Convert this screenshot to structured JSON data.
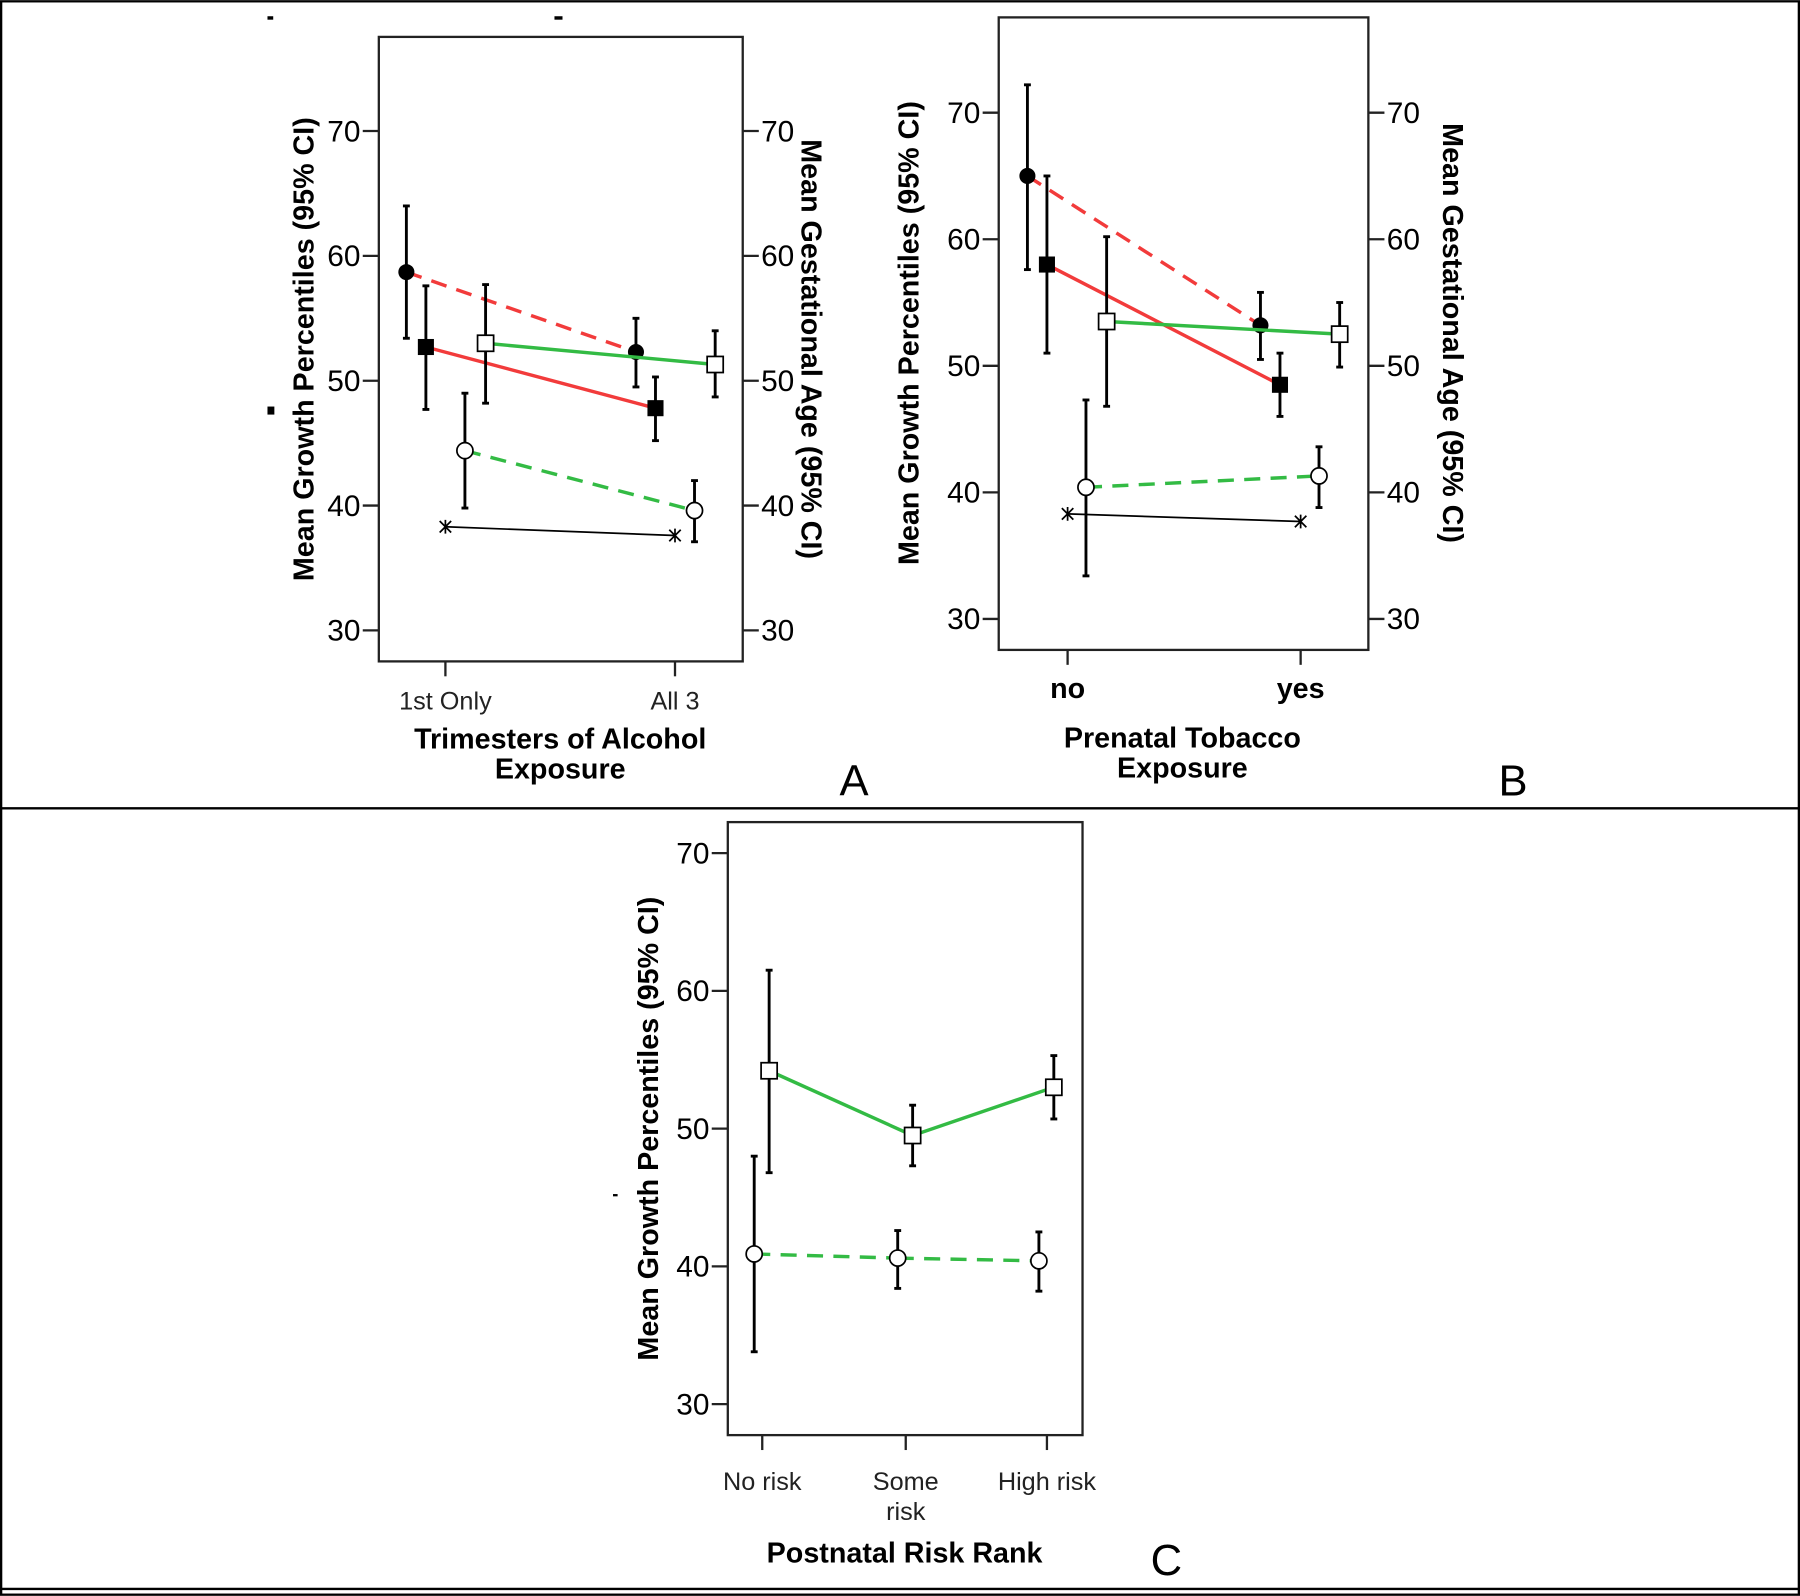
{
  "colors": {
    "red": "#f23b3b",
    "green": "#33bb44",
    "black": "#000000"
  },
  "chart_data": [
    {
      "type": "line",
      "panel_label": "A",
      "xlabel_lines": [
        "Trimesters of Alcohol",
        "Exposure"
      ],
      "ylabel": "Mean Growth Percentiles (95% CI)",
      "y2label": "Mean Gestational Age (95% CI)",
      "categories": [
        "1st Only",
        "All 3"
      ],
      "ylim": [
        30,
        70
      ],
      "yticks": [
        30,
        40,
        50,
        60,
        70
      ],
      "y2ticks": [
        30,
        40,
        50,
        60,
        70
      ],
      "series": [
        {
          "style": "red-dashed-filled-circle",
          "values": [
            58.7,
            52.3
          ],
          "ci_low": [
            53.4,
            49.5
          ],
          "ci_high": [
            64.0,
            55.0
          ]
        },
        {
          "style": "red-solid-filled-square",
          "values": [
            52.7,
            47.8
          ],
          "ci_low": [
            47.7,
            45.2
          ],
          "ci_high": [
            57.6,
            50.3
          ]
        },
        {
          "style": "green-solid-open-square",
          "values": [
            53.0,
            51.3
          ],
          "ci_low": [
            48.2,
            48.7
          ],
          "ci_high": [
            57.7,
            54.0
          ]
        },
        {
          "style": "green-dashed-open-circle",
          "values": [
            44.4,
            39.6
          ],
          "ci_low": [
            39.8,
            37.1
          ],
          "ci_high": [
            49.0,
            42.0
          ]
        },
        {
          "style": "black-thin-asterisk",
          "values": [
            38.3,
            37.6
          ]
        }
      ]
    },
    {
      "type": "line",
      "panel_label": "B",
      "xlabel_lines": [
        "Prenatal Tobacco",
        "Exposure"
      ],
      "ylabel": "Mean Growth Percentiles (95% CI)",
      "y2label": "Mean Gestational Age (95% CI)",
      "categories": [
        "no",
        "yes"
      ],
      "ylim": [
        30,
        70
      ],
      "yticks": [
        30,
        40,
        50,
        60,
        70
      ],
      "y2ticks": [
        30,
        40,
        50,
        60,
        70
      ],
      "series": [
        {
          "style": "red-dashed-filled-circle",
          "values": [
            65.0,
            53.2
          ],
          "ci_low": [
            57.6,
            50.5
          ],
          "ci_high": [
            72.2,
            55.8
          ]
        },
        {
          "style": "red-solid-filled-square",
          "values": [
            58.0,
            48.5
          ],
          "ci_low": [
            51.0,
            46.0
          ],
          "ci_high": [
            65.0,
            51.0
          ]
        },
        {
          "style": "green-solid-open-square",
          "values": [
            53.5,
            52.5
          ],
          "ci_low": [
            46.8,
            49.9
          ],
          "ci_high": [
            60.2,
            55.0
          ]
        },
        {
          "style": "green-dashed-open-circle",
          "values": [
            40.4,
            41.3
          ],
          "ci_low": [
            33.4,
            38.8
          ],
          "ci_high": [
            47.3,
            43.6
          ]
        },
        {
          "style": "black-thin-asterisk",
          "values": [
            38.3,
            37.7
          ]
        }
      ]
    },
    {
      "type": "line",
      "panel_label": "C",
      "xlabel_lines": [
        "Postnatal Risk Rank"
      ],
      "ylabel": "Mean Growth Percentiles (95% CI)",
      "categories": [
        "No risk",
        "Some risk",
        "High risk"
      ],
      "ylim": [
        30,
        70
      ],
      "yticks": [
        30,
        40,
        50,
        60,
        70
      ],
      "series": [
        {
          "style": "green-solid-open-square",
          "values": [
            54.2,
            49.5,
            53.0
          ],
          "ci_low": [
            46.8,
            47.3,
            50.7
          ],
          "ci_high": [
            61.5,
            51.7,
            55.3
          ]
        },
        {
          "style": "green-dashed-open-circle",
          "values": [
            40.9,
            40.6,
            40.4
          ],
          "ci_low": [
            33.8,
            38.4,
            38.2
          ],
          "ci_high": [
            48.0,
            42.6,
            42.5
          ]
        }
      ]
    }
  ]
}
